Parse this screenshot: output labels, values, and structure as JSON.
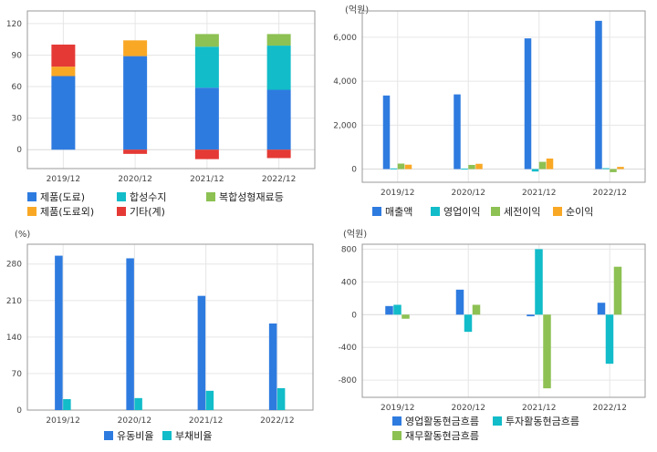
{
  "colors": {
    "blue": "#2e7be0",
    "cyan": "#12bcc9",
    "green": "#8dc153",
    "orange": "#f9a825",
    "red": "#e53935"
  },
  "chart_data": [
    {
      "id": "revenue_mix",
      "type": "bar",
      "stacked": true,
      "unit": "",
      "categories": [
        "2019/12",
        "2020/12",
        "2021/12",
        "2022/12"
      ],
      "ylim": [
        -18,
        132
      ],
      "yticks": [
        0,
        30,
        60,
        90,
        120
      ],
      "ytick_labels": [
        "0",
        "30",
        "60",
        "90",
        "120"
      ],
      "series": [
        {
          "name": "제품(도료)",
          "color": "#2e7be0",
          "values": [
            70,
            89,
            59,
            57
          ]
        },
        {
          "name": "제품(도료외)",
          "color": "#f9a825",
          "values": [
            9,
            15,
            0,
            0
          ]
        },
        {
          "name": "합성수지",
          "color": "#12bcc9",
          "values": [
            0,
            0,
            39,
            42
          ]
        },
        {
          "name": "기타(계)",
          "color": "#e53935",
          "values": [
            21,
            -4,
            -9,
            -8
          ]
        },
        {
          "name": "복합성형재료등",
          "color": "#8dc153",
          "values": [
            0,
            0,
            12,
            11
          ]
        }
      ],
      "legend_order": [
        "제품(도료)",
        "합성수지",
        "복합성형재료등",
        "제품(도료외)",
        "기타(계)"
      ]
    },
    {
      "id": "income",
      "type": "bar",
      "stacked": false,
      "unit": "(억원)",
      "categories": [
        "2019/12",
        "2020/12",
        "2021/12",
        "2022/12"
      ],
      "ylim": [
        -600,
        7200
      ],
      "yticks": [
        0,
        2000,
        4000,
        6000
      ],
      "ytick_labels": [
        "0",
        "2,000",
        "4,000",
        "6,000"
      ],
      "series": [
        {
          "name": "매출액",
          "color": "#2e7be0",
          "values": [
            3350,
            3400,
            5950,
            6750
          ]
        },
        {
          "name": "영업이익",
          "color": "#12bcc9",
          "values": [
            30,
            20,
            -110,
            40
          ]
        },
        {
          "name": "세전이익",
          "color": "#8dc153",
          "values": [
            250,
            190,
            330,
            -140
          ]
        },
        {
          "name": "순이익",
          "color": "#f9a825",
          "values": [
            200,
            240,
            480,
            100
          ]
        }
      ]
    },
    {
      "id": "ratios",
      "type": "bar",
      "stacked": false,
      "unit": "(%)",
      "categories": [
        "2019/12",
        "2020/12",
        "2021/12",
        "2022/12"
      ],
      "ylim": [
        0,
        318
      ],
      "yticks": [
        0,
        70,
        140,
        210,
        280
      ],
      "ytick_labels": [
        "0",
        "70",
        "140",
        "210",
        "280"
      ],
      "series": [
        {
          "name": "유동비율",
          "color": "#2e7be0",
          "values": [
            296,
            291,
            219,
            166
          ]
        },
        {
          "name": "부채비율",
          "color": "#12bcc9",
          "values": [
            21,
            23,
            37,
            42
          ]
        }
      ]
    },
    {
      "id": "cashflow",
      "type": "bar",
      "stacked": false,
      "unit": "(억원)",
      "categories": [
        "2019/12",
        "2020/12",
        "2021/12",
        "2022/12"
      ],
      "ylim": [
        -1010,
        860
      ],
      "yticks": [
        -800,
        -400,
        0,
        400,
        800
      ],
      "ytick_labels": [
        "-800",
        "-400",
        "0",
        "400",
        "800"
      ],
      "series": [
        {
          "name": "영업활동현금흐름",
          "color": "#2e7be0",
          "values": [
            105,
            305,
            -20,
            145
          ]
        },
        {
          "name": "투자활동현금흐름",
          "color": "#12bcc9",
          "values": [
            120,
            -210,
            800,
            -600
          ]
        },
        {
          "name": "재무활동현금흐름",
          "color": "#8dc153",
          "values": [
            -50,
            120,
            -900,
            585
          ]
        }
      ]
    }
  ]
}
